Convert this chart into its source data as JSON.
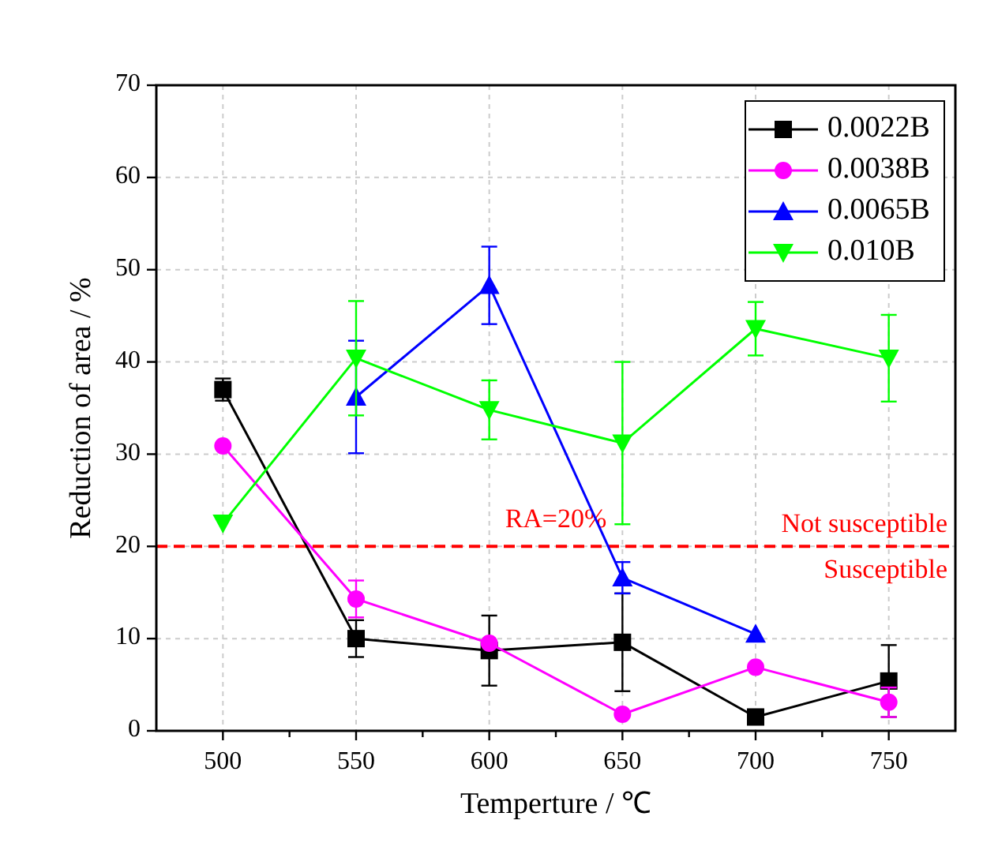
{
  "chart_data": {
    "type": "line",
    "xlabel": "Temperture / ℃",
    "ylabel": "Reduction of area / %",
    "x": [
      500,
      550,
      600,
      650,
      700,
      750
    ],
    "xlim": [
      475,
      775
    ],
    "xticks": [
      500,
      {
        "value": 525,
        "label": null
      },
      550,
      {
        "value": 575,
        "label": null
      },
      600,
      {
        "value": 625,
        "label": null
      },
      650,
      {
        "value": 675,
        "label": null
      },
      700,
      {
        "value": 725,
        "label": null
      },
      750
    ],
    "ylim": [
      0,
      70
    ],
    "yticks": [
      0,
      10,
      20,
      30,
      40,
      50,
      60,
      70
    ],
    "grid": true,
    "legend": "top right",
    "line_style": "solid",
    "series": [
      {
        "name": "0.0022B",
        "color": "#000000",
        "marker": "square",
        "values": [
          37,
          10,
          8.7,
          9.6,
          1.5,
          5.4
        ],
        "errors": [
          1.2,
          2,
          3.8,
          5.3,
          0.8,
          3.9
        ]
      },
      {
        "name": "0.0038B",
        "color": "#ff00ff",
        "marker": "circle",
        "values": [
          30.9,
          14.3,
          9.5,
          1.8,
          6.9,
          3.1
        ],
        "errors": [
          null,
          2,
          null,
          null,
          null,
          1.6
        ]
      },
      {
        "name": "0.0065B",
        "color": "#0000ff",
        "marker": "triangle",
        "values": [
          null,
          36.2,
          48.3,
          16.6,
          10.5,
          null
        ],
        "errors": [
          null,
          6.1,
          4.2,
          1.7,
          null,
          null
        ]
      },
      {
        "name": "0.010B",
        "color": "#00ff00",
        "marker": "triangle-down",
        "values": [
          22.5,
          40.4,
          34.8,
          31.2,
          43.6,
          40.4
        ],
        "errors": [
          null,
          6.2,
          3.2,
          8.8,
          2.9,
          4.7
        ]
      }
    ],
    "ref_lines": [
      {
        "axis": "y",
        "value": 20,
        "label": "RA=20%",
        "color": "#ff0000",
        "line_style": "dashed"
      }
    ],
    "annotations": [
      "Not susceptible",
      "Susceptible"
    ]
  }
}
